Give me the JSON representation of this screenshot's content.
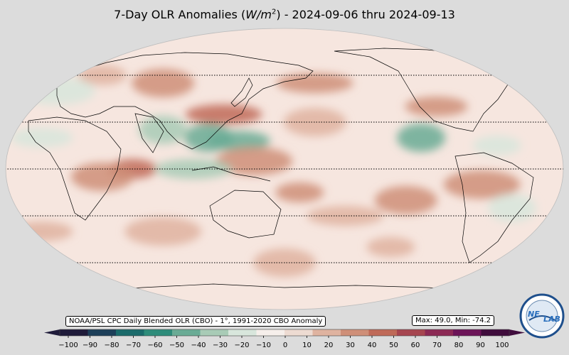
{
  "title": {
    "prefix": "7-Day OLR Anomalies (",
    "unit_italic": "W/m",
    "unit_exp": "2",
    "suffix": ") - 2024-09-06 thru 2024-09-13"
  },
  "source_label": "NOAA/PSL CPC Daily Blended OLR (CBO) - 1°, 1991-2020 CBO Anomaly",
  "stats_label": "Max: 49.0,  Min: -74.2",
  "colorbar": {
    "ticks": [
      "−100",
      "−90",
      "−80",
      "−70",
      "−60",
      "−50",
      "−40",
      "−30",
      "−20",
      "−10",
      "0",
      "10",
      "20",
      "30",
      "40",
      "50",
      "60",
      "70",
      "80",
      "90",
      "100"
    ],
    "range": [
      -100,
      100
    ],
    "colors": [
      "#1f1b3a",
      "#1d3f59",
      "#1b6b6b",
      "#2e8c7a",
      "#6aab95",
      "#a8cbb6",
      "#d8e6dc",
      "#f6efeb",
      "#eddbd2",
      "#dfb3a0",
      "#cf8f78",
      "#bf6a58",
      "#a64650",
      "#8c2a55",
      "#6c1458",
      "#3f0c3c"
    ]
  },
  "logo": {
    "text_left": "NE",
    "text_right": "LAB"
  },
  "map": {
    "projection": "robinson",
    "central_longitude": 180,
    "parallels": [
      "60N",
      "30N",
      "0",
      "30S",
      "60S"
    ],
    "anomaly_blobs": [
      {
        "lon": 60,
        "lat": 60,
        "value": 20
      },
      {
        "lon": 100,
        "lat": 55,
        "value": 30
      },
      {
        "lon": 140,
        "lat": 35,
        "value": 40
      },
      {
        "lon": 130,
        "lat": 20,
        "value": -40
      },
      {
        "lon": 150,
        "lat": 18,
        "value": -50
      },
      {
        "lon": 160,
        "lat": 5,
        "value": 25
      },
      {
        "lon": 80,
        "lat": 0,
        "value": 40
      },
      {
        "lon": 60,
        "lat": -5,
        "value": 30
      },
      {
        "lon": 120,
        "lat": 0,
        "value": -30
      },
      {
        "lon": 100,
        "lat": 25,
        "value": -35
      },
      {
        "lon": 20,
        "lat": 20,
        "value": -25
      },
      {
        "lon": 30,
        "lat": 50,
        "value": -20
      },
      {
        "lon": 190,
        "lat": -15,
        "value": 35
      },
      {
        "lon": 200,
        "lat": 30,
        "value": 20
      },
      {
        "lon": 200,
        "lat": 55,
        "value": 30
      },
      {
        "lon": 270,
        "lat": 20,
        "value": -45
      },
      {
        "lon": 280,
        "lat": 40,
        "value": 25
      },
      {
        "lon": 310,
        "lat": -10,
        "value": 30
      },
      {
        "lon": 320,
        "lat": 15,
        "value": -25
      },
      {
        "lon": 260,
        "lat": -20,
        "value": 25
      },
      {
        "lon": 220,
        "lat": -30,
        "value": 20
      },
      {
        "lon": 330,
        "lat": -25,
        "value": -20
      },
      {
        "lon": 20,
        "lat": -40,
        "value": 20
      },
      {
        "lon": 100,
        "lat": -40,
        "value": 15
      },
      {
        "lon": 250,
        "lat": -50,
        "value": 20
      },
      {
        "lon": 180,
        "lat": -60,
        "value": 15
      }
    ]
  }
}
